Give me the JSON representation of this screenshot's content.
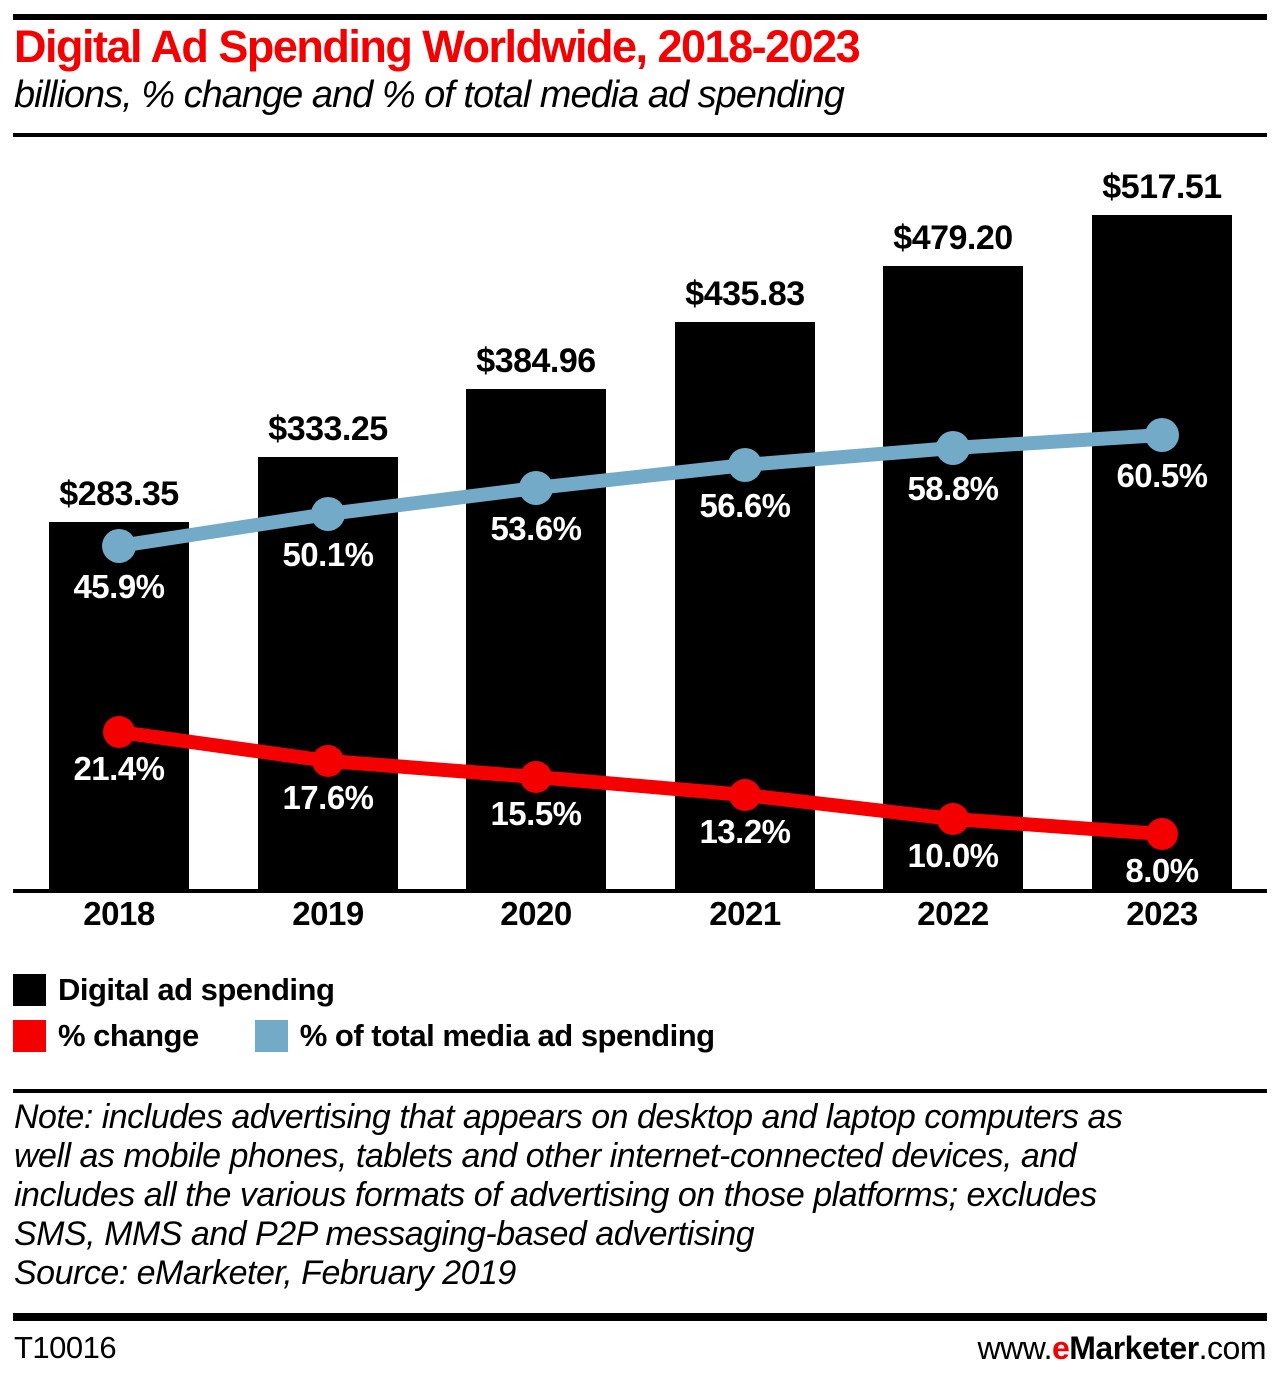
{
  "header": {
    "title": "Digital Ad Spending Worldwide, 2018-2023",
    "subtitle": "billions, % change and % of total media ad spending"
  },
  "chart_data": {
    "type": "bar+line",
    "categories": [
      "2018",
      "2019",
      "2020",
      "2021",
      "2022",
      "2023"
    ],
    "series": [
      {
        "name": "Digital ad spending",
        "type": "bar",
        "unit": "billions of US dollars",
        "values": [
          283.35,
          333.25,
          384.96,
          435.83,
          479.2,
          517.51
        ],
        "labels": [
          "$283.35",
          "$333.25",
          "$384.96",
          "$435.83",
          "$479.20",
          "$517.51"
        ],
        "color": "#000000"
      },
      {
        "name": "% change",
        "type": "line",
        "values": [
          21.4,
          17.6,
          15.5,
          13.2,
          10.0,
          8.0
        ],
        "labels": [
          "21.4%",
          "17.6%",
          "15.5%",
          "13.2%",
          "10.0%",
          "8.0%"
        ],
        "color": "#f40000"
      },
      {
        "name": "% of total media ad spending",
        "type": "line",
        "values": [
          45.9,
          50.1,
          53.6,
          56.6,
          58.8,
          60.5
        ],
        "labels": [
          "45.9%",
          "50.1%",
          "53.6%",
          "56.6%",
          "58.8%",
          "60.5%"
        ],
        "color": "#73aac8"
      }
    ],
    "title": "Digital Ad Spending Worldwide, 2018-2023",
    "xlabel": "",
    "ylabel": "",
    "grid": false,
    "legend_position": "bottom"
  },
  "legend": {
    "items": [
      {
        "label": "Digital ad spending",
        "color": "#000000"
      },
      {
        "label": "% change",
        "color": "#f40000"
      },
      {
        "label": "% of total media ad spending",
        "color": "#73aac8"
      }
    ]
  },
  "footnote": {
    "note_lines": [
      "Note: includes advertising that appears on desktop and laptop computers as",
      "well as mobile phones, tablets and other internet-connected devices, and",
      "includes all the various formats of advertising on those platforms; excludes",
      "SMS, MMS and P2P messaging-based advertising"
    ],
    "source": "Source: eMarketer, February 2019"
  },
  "footer": {
    "chart_id": "T10016",
    "site_prefix": "www.",
    "site_e": "e",
    "site_brand": "Marketer",
    "site_suffix": ".com"
  },
  "colors": {
    "accent_red": "#f40000",
    "line_blue": "#73aac8",
    "bar_black": "#000000",
    "background": "#ffffff"
  }
}
